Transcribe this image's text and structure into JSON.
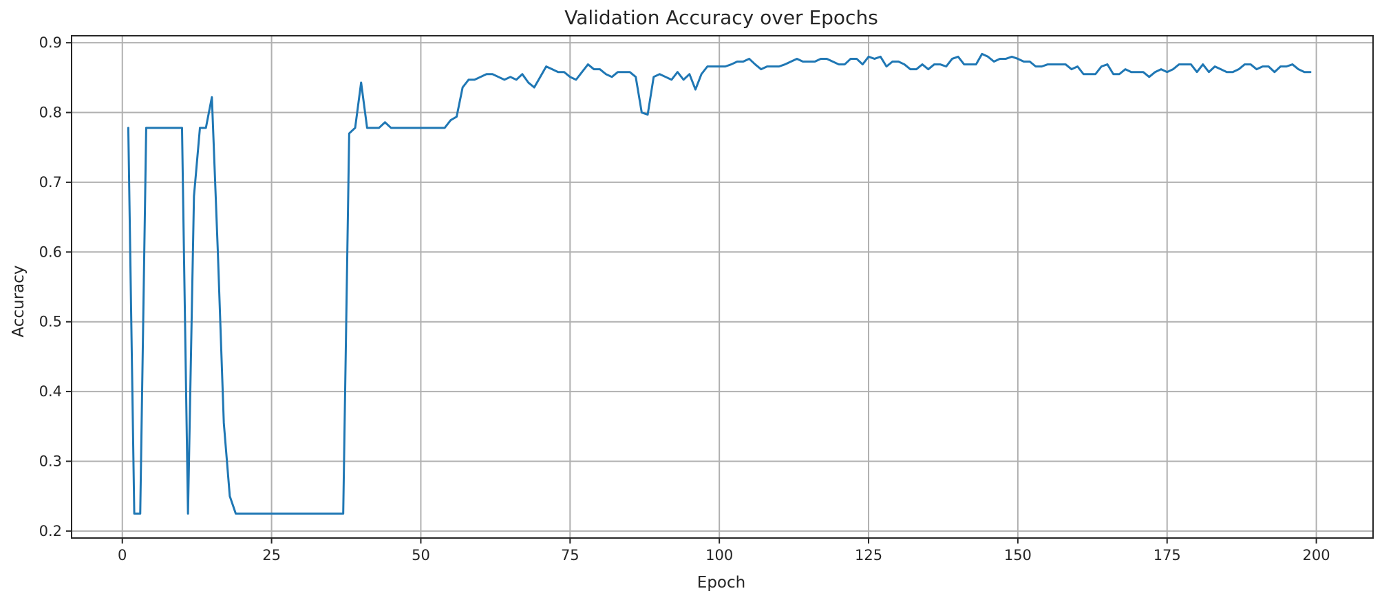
{
  "chart_data": {
    "type": "line",
    "title": "Validation Accuracy over Epochs",
    "xlabel": "Epoch",
    "ylabel": "Accuracy",
    "xlim": [
      -8.5,
      209.5
    ],
    "ylim": [
      0.19,
      0.91
    ],
    "xticks": [
      0,
      25,
      50,
      75,
      100,
      125,
      150,
      175,
      200
    ],
    "yticks": [
      0.2,
      0.3,
      0.4,
      0.5,
      0.6,
      0.7,
      0.8,
      0.9
    ],
    "xtick_labels": [
      "0",
      "25",
      "50",
      "75",
      "100",
      "125",
      "150",
      "175",
      "200"
    ],
    "ytick_labels": [
      "0.2",
      "0.3",
      "0.4",
      "0.5",
      "0.6",
      "0.7",
      "0.8",
      "0.9"
    ],
    "grid": true,
    "series": [
      {
        "color": "#1f77b4",
        "x": [
          1,
          2,
          3,
          4,
          5,
          6,
          7,
          8,
          9,
          10,
          11,
          12,
          13,
          14,
          15,
          16,
          17,
          18,
          19,
          20,
          21,
          22,
          23,
          24,
          25,
          26,
          27,
          28,
          29,
          30,
          31,
          32,
          33,
          34,
          35,
          36,
          37,
          38,
          39,
          40,
          41,
          42,
          43,
          44,
          45,
          46,
          47,
          48,
          49,
          50,
          51,
          52,
          53,
          54,
          55,
          56,
          57,
          58,
          59,
          60,
          61,
          62,
          63,
          64,
          65,
          66,
          67,
          68,
          69,
          70,
          71,
          72,
          73,
          74,
          75,
          76,
          77,
          78,
          79,
          80,
          81,
          82,
          83,
          84,
          85,
          86,
          87,
          88,
          89,
          90,
          91,
          92,
          93,
          94,
          95,
          96,
          97,
          98,
          99,
          100,
          101,
          102,
          103,
          104,
          105,
          106,
          107,
          108,
          109,
          110,
          111,
          112,
          113,
          114,
          115,
          116,
          117,
          118,
          119,
          120,
          121,
          122,
          123,
          124,
          125,
          126,
          127,
          128,
          129,
          130,
          131,
          132,
          133,
          134,
          135,
          136,
          137,
          138,
          139,
          140,
          141,
          142,
          143,
          144,
          145,
          146,
          147,
          148,
          149,
          150,
          151,
          152,
          153,
          154,
          155,
          156,
          157,
          158,
          159,
          160,
          161,
          162,
          163,
          164,
          165,
          166,
          167,
          168,
          169,
          170,
          171,
          172,
          173,
          174,
          175,
          176,
          177,
          178,
          179,
          180,
          181,
          182,
          183,
          184,
          185,
          186,
          187,
          188,
          189,
          190,
          191,
          192,
          193,
          194,
          195,
          196,
          197,
          198,
          199
        ],
        "values": [
          0.778,
          0.225,
          0.225,
          0.778,
          0.778,
          0.778,
          0.778,
          0.778,
          0.778,
          0.778,
          0.225,
          0.68,
          0.778,
          0.778,
          0.822,
          0.6,
          0.355,
          0.25,
          0.225,
          0.225,
          0.225,
          0.225,
          0.225,
          0.225,
          0.225,
          0.225,
          0.225,
          0.225,
          0.225,
          0.225,
          0.225,
          0.225,
          0.225,
          0.225,
          0.225,
          0.225,
          0.225,
          0.77,
          0.778,
          0.843,
          0.778,
          0.778,
          0.778,
          0.786,
          0.778,
          0.778,
          0.778,
          0.778,
          0.778,
          0.778,
          0.778,
          0.778,
          0.778,
          0.778,
          0.789,
          0.794,
          0.836,
          0.847,
          0.847,
          0.851,
          0.855,
          0.855,
          0.851,
          0.847,
          0.851,
          0.847,
          0.855,
          0.843,
          0.836,
          0.851,
          0.866,
          0.862,
          0.858,
          0.858,
          0.851,
          0.847,
          0.858,
          0.869,
          0.862,
          0.862,
          0.855,
          0.851,
          0.858,
          0.858,
          0.858,
          0.851,
          0.8,
          0.797,
          0.851,
          0.855,
          0.851,
          0.847,
          0.858,
          0.847,
          0.855,
          0.833,
          0.855,
          0.866,
          0.866,
          0.866,
          0.866,
          0.869,
          0.873,
          0.873,
          0.877,
          0.869,
          0.862,
          0.866,
          0.866,
          0.866,
          0.869,
          0.873,
          0.877,
          0.873,
          0.873,
          0.873,
          0.877,
          0.877,
          0.873,
          0.869,
          0.869,
          0.877,
          0.877,
          0.869,
          0.88,
          0.877,
          0.88,
          0.866,
          0.873,
          0.873,
          0.869,
          0.862,
          0.862,
          0.869,
          0.862,
          0.869,
          0.869,
          0.866,
          0.877,
          0.88,
          0.869,
          0.869,
          0.869,
          0.884,
          0.88,
          0.873,
          0.877,
          0.877,
          0.88,
          0.877,
          0.873,
          0.873,
          0.866,
          0.866,
          0.869,
          0.869,
          0.869,
          0.869,
          0.862,
          0.866,
          0.855,
          0.855,
          0.855,
          0.866,
          0.869,
          0.855,
          0.855,
          0.862,
          0.858,
          0.858,
          0.858,
          0.851,
          0.858,
          0.862,
          0.858,
          0.862,
          0.869,
          0.869,
          0.869,
          0.858,
          0.869,
          0.858,
          0.866,
          0.862,
          0.858,
          0.858,
          0.862,
          0.869,
          0.869,
          0.862,
          0.866,
          0.866,
          0.858,
          0.866,
          0.866,
          0.869,
          0.862,
          0.858,
          0.858
        ]
      }
    ]
  }
}
